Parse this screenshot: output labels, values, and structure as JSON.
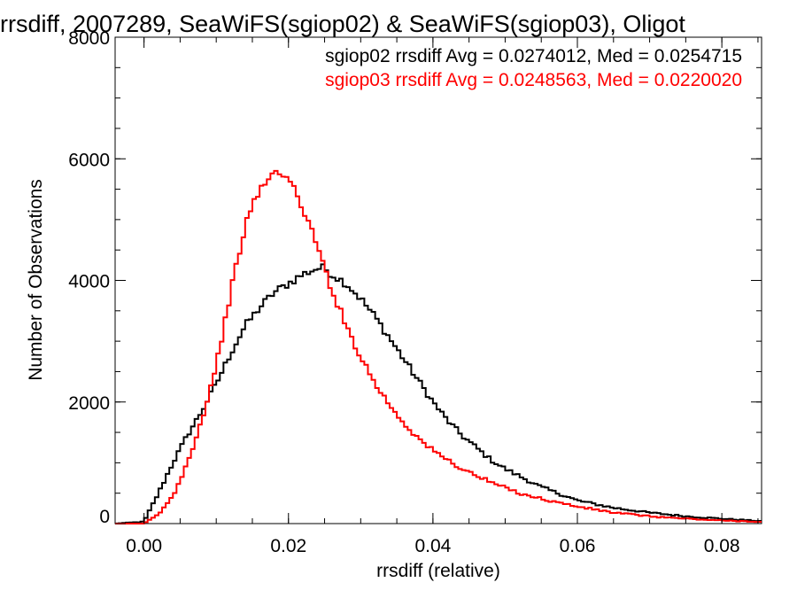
{
  "chart_data": {
    "type": "line",
    "title": "rrsdiff, 2007289, SeaWiFS(sgiop02) & SeaWiFS(sgiop03), Oligot",
    "xlabel": "rrsdiff (relative)",
    "ylabel": "Number of Observations",
    "xlim": [
      -0.004,
      0.0855
    ],
    "ylim": [
      0,
      8000
    ],
    "xticks": [
      0.0,
      0.02,
      0.04,
      0.06,
      0.08
    ],
    "xtick_labels": [
      "0.00",
      "0.02",
      "0.04",
      "0.06",
      "0.08"
    ],
    "yticks": [
      0,
      2000,
      4000,
      6000,
      8000
    ],
    "ytick_labels": [
      "0",
      "2000",
      "4000",
      "6000",
      "8000"
    ],
    "grid": false,
    "legend_position": "top-right",
    "series": [
      {
        "name": "sgiop02 rrsdiff Avg = 0.0274012, Med = 0.0254715",
        "color": "#000000",
        "x": [
          -0.004,
          0.0,
          0.002,
          0.004,
          0.006,
          0.008,
          0.01,
          0.012,
          0.014,
          0.016,
          0.018,
          0.02,
          0.022,
          0.024,
          0.025,
          0.026,
          0.028,
          0.03,
          0.032,
          0.034,
          0.036,
          0.038,
          0.04,
          0.042,
          0.044,
          0.046,
          0.048,
          0.05,
          0.055,
          0.06,
          0.065,
          0.07,
          0.075,
          0.08,
          0.0855
        ],
        "y": [
          0,
          30,
          500,
          1000,
          1450,
          1850,
          2300,
          2800,
          3250,
          3550,
          3800,
          3950,
          4100,
          4200,
          4200,
          4100,
          3950,
          3700,
          3400,
          3050,
          2700,
          2350,
          2000,
          1700,
          1450,
          1250,
          1050,
          900,
          600,
          380,
          260,
          180,
          120,
          80,
          40
        ]
      },
      {
        "name": "sgiop03 rrsdiff Avg = 0.0248563, Med = 0.0220020",
        "color": "#ff0000",
        "x": [
          -0.004,
          0.0,
          0.002,
          0.004,
          0.006,
          0.008,
          0.01,
          0.012,
          0.014,
          0.016,
          0.018,
          0.019,
          0.02,
          0.022,
          0.024,
          0.026,
          0.028,
          0.03,
          0.032,
          0.034,
          0.036,
          0.038,
          0.04,
          0.044,
          0.048,
          0.052,
          0.056,
          0.06,
          0.065,
          0.07,
          0.075,
          0.08,
          0.0855
        ],
        "y": [
          0,
          0,
          150,
          450,
          1000,
          1700,
          2600,
          3800,
          4900,
          5500,
          5750,
          5820,
          5650,
          5200,
          4550,
          3850,
          3250,
          2750,
          2300,
          1950,
          1650,
          1400,
          1200,
          900,
          680,
          500,
          380,
          280,
          180,
          120,
          80,
          50,
          30
        ]
      }
    ]
  }
}
